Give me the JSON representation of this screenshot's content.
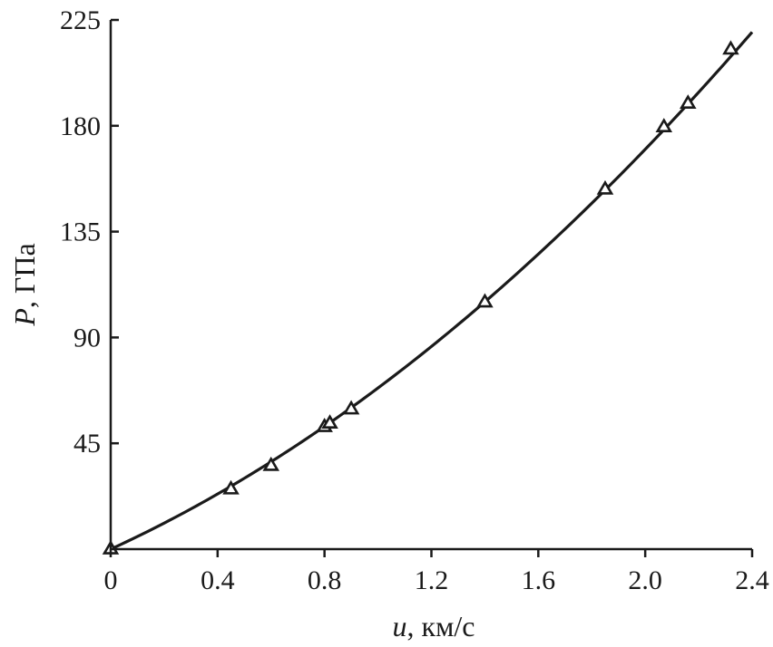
{
  "chart_data": {
    "type": "scatter",
    "x_label_var": "u",
    "x_label_unit": ", км/с",
    "y_label_var": "P",
    "y_label_unit": ", ГПа",
    "xlim": [
      0,
      2.4
    ],
    "ylim": [
      0,
      225
    ],
    "x_ticks": [
      0,
      0.4,
      0.8,
      1.2,
      1.6,
      2.0,
      2.4
    ],
    "x_tick_labels": [
      "0",
      "0.4",
      "0.8",
      "1.2",
      "1.6",
      "2.0",
      "2.4"
    ],
    "y_ticks": [
      45,
      90,
      135,
      180,
      225
    ],
    "y_tick_labels": [
      "45",
      "90",
      "135",
      "180",
      "225"
    ],
    "grid": false,
    "marker": "open-triangle",
    "series": [
      {
        "style": "markers",
        "points": [
          {
            "x": 0.0,
            "y": 0.0
          },
          {
            "x": 0.45,
            "y": 25.5
          },
          {
            "x": 0.6,
            "y": 35.5
          },
          {
            "x": 0.8,
            "y": 52.0
          },
          {
            "x": 0.82,
            "y": 53.5
          },
          {
            "x": 0.9,
            "y": 59.5
          },
          {
            "x": 1.4,
            "y": 105.0
          },
          {
            "x": 1.85,
            "y": 153.0
          },
          {
            "x": 2.07,
            "y": 179.5
          },
          {
            "x": 2.16,
            "y": 189.5
          },
          {
            "x": 2.32,
            "y": 212.5
          }
        ]
      },
      {
        "style": "line",
        "fit": {
          "form": "P = a*u + b*u^2",
          "a": 52.0,
          "b": 16.5
        },
        "x_range": [
          0.0,
          2.4
        ]
      }
    ]
  }
}
